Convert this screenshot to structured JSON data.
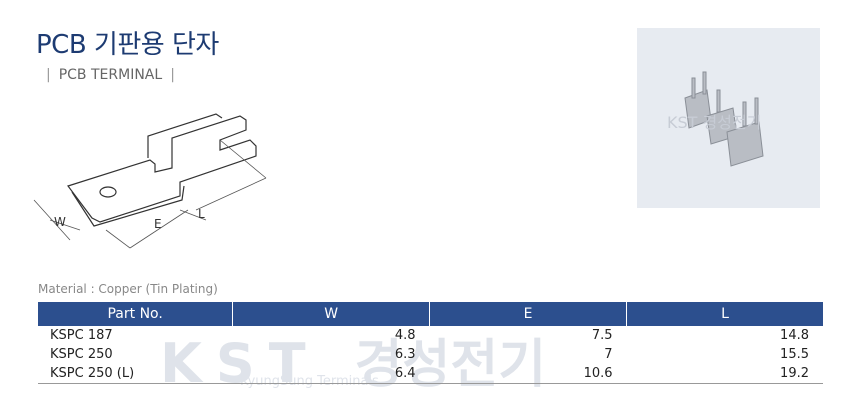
{
  "header": {
    "title": "PCB 기판용 단자",
    "subtitle": "PCB TERMINAL"
  },
  "diagram": {
    "labels": [
      "W",
      "E",
      "L"
    ]
  },
  "photo": {
    "watermark": "KST 경성전기"
  },
  "material": "Material : Copper (Tin Plating)",
  "table": {
    "columns": [
      "Part No.",
      "W",
      "E",
      "L"
    ],
    "rows": [
      [
        "KSPC 187",
        4.8,
        7.5,
        14.8
      ],
      [
        "KSPC 250",
        6.3,
        7,
        15.5
      ],
      [
        "KSPC 250 (L)",
        6.4,
        10.6,
        19.2
      ]
    ]
  },
  "watermark": {
    "logo": "KST",
    "name": "경성전기",
    "caption": "KyungSung Terminals"
  }
}
